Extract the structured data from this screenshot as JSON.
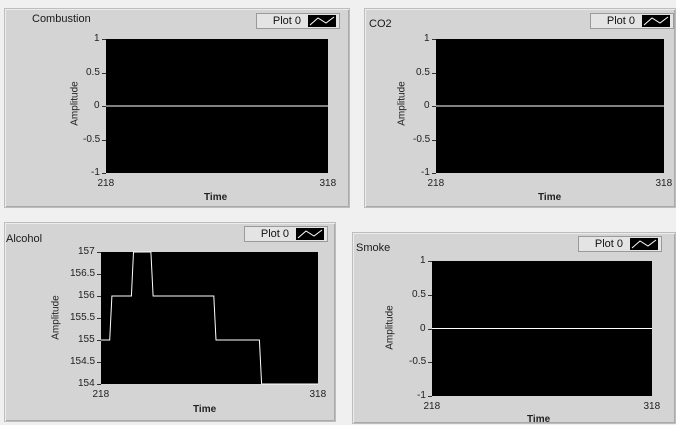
{
  "graphs": [
    {
      "id": "combustion",
      "title": "Combustion",
      "legend_label": "Plot 0",
      "xlabel": "Time",
      "ylabel": "Amplitude",
      "chart_data": {
        "type": "line",
        "title": "Combustion",
        "xlabel": "Time",
        "ylabel": "Amplitude",
        "xlim": [
          218,
          318
        ],
        "ylim": [
          -1,
          1
        ],
        "x_ticks": [
          "218",
          "318"
        ],
        "y_ticks": [
          "1",
          "0.5",
          "0",
          "-0.5",
          "-1"
        ],
        "series": [
          {
            "name": "Plot 0",
            "x": [
              218,
              318
            ],
            "y": [
              0,
              0
            ]
          }
        ]
      }
    },
    {
      "id": "co2",
      "title": "CO2",
      "legend_label": "Plot 0",
      "xlabel": "Time",
      "ylabel": "Amplitude",
      "chart_data": {
        "type": "line",
        "title": "CO2",
        "xlabel": "Time",
        "ylabel": "Amplitude",
        "xlim": [
          218,
          318
        ],
        "ylim": [
          -1,
          1
        ],
        "x_ticks": [
          "218",
          "318"
        ],
        "y_ticks": [
          "1",
          "0.5",
          "0",
          "-0.5",
          "-1"
        ],
        "series": [
          {
            "name": "Plot 0",
            "x": [
              218,
              318
            ],
            "y": [
              0,
              0
            ]
          }
        ]
      }
    },
    {
      "id": "alcohol",
      "title": "Alcohol",
      "legend_label": "Plot 0",
      "xlabel": "Time",
      "ylabel": "Amplitude",
      "chart_data": {
        "type": "line",
        "title": "Alcohol",
        "xlabel": "Time",
        "ylabel": "Amplitude",
        "xlim": [
          218,
          318
        ],
        "ylim": [
          154,
          157
        ],
        "x_ticks": [
          "218",
          "318"
        ],
        "y_ticks": [
          "157",
          "156.5",
          "156",
          "155.5",
          "155",
          "154.5",
          "154"
        ],
        "series": [
          {
            "name": "Plot 0",
            "x": [
              218,
              222,
              223,
              232,
              233,
              241,
              242,
              270,
              271,
              291,
              292,
              318
            ],
            "y": [
              155,
              155,
              156,
              156,
              157,
              157,
              156,
              156,
              155,
              155,
              154,
              154
            ]
          }
        ]
      }
    },
    {
      "id": "smoke",
      "title": "Smoke",
      "legend_label": "Plot 0",
      "xlabel": "Time",
      "ylabel": "Amplitude",
      "chart_data": {
        "type": "line",
        "title": "Smoke",
        "xlabel": "Time",
        "ylabel": "Amplitude",
        "xlim": [
          218,
          318
        ],
        "ylim": [
          -1,
          1
        ],
        "x_ticks": [
          "218",
          "318"
        ],
        "y_ticks": [
          "1",
          "0.5",
          "0",
          "-0.5",
          "-1"
        ],
        "series": [
          {
            "name": "Plot 0",
            "x": [
              218,
              318
            ],
            "y": [
              0,
              0
            ]
          }
        ]
      }
    }
  ]
}
